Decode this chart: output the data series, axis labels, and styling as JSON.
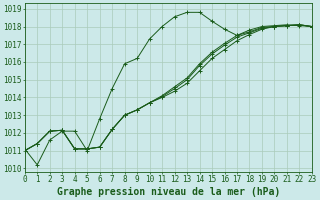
{
  "title": "Graphe pression niveau de la mer (hPa)",
  "x_ticks": [
    0,
    1,
    2,
    3,
    4,
    5,
    6,
    7,
    8,
    9,
    10,
    11,
    12,
    13,
    14,
    15,
    16,
    17,
    18,
    19,
    20,
    21,
    22,
    23
  ],
  "y_ticks": [
    1010,
    1011,
    1012,
    1013,
    1014,
    1015,
    1016,
    1017,
    1018,
    1019
  ],
  "xlim": [
    0,
    23
  ],
  "ylim": [
    1009.8,
    1019.3
  ],
  "background_color": "#cce9e9",
  "grid_color": "#aaccbb",
  "line_color": "#1a5c1a",
  "series": [
    [
      1011.1,
      1010.2,
      1011.6,
      1012.1,
      1012.1,
      1011.0,
      1012.8,
      1014.5,
      1015.9,
      1016.2,
      1017.3,
      1018.0,
      1018.55,
      1018.8,
      1018.8,
      1018.3,
      1017.85,
      1017.5,
      1017.8,
      1018.0,
      1018.05,
      1018.1,
      1018.05,
      1018.0
    ],
    [
      1011.0,
      1011.4,
      1012.1,
      1012.15,
      1011.1,
      1011.1,
      1011.2,
      1012.2,
      1013.0,
      1013.3,
      1013.7,
      1014.0,
      1014.35,
      1014.8,
      1015.5,
      1016.2,
      1016.7,
      1017.2,
      1017.55,
      1017.85,
      1018.0,
      1018.05,
      1018.1,
      1018.0
    ],
    [
      1011.0,
      1011.4,
      1012.1,
      1012.15,
      1011.1,
      1011.1,
      1011.2,
      1012.2,
      1013.0,
      1013.3,
      1013.7,
      1014.05,
      1014.5,
      1015.0,
      1015.8,
      1016.45,
      1016.95,
      1017.4,
      1017.65,
      1017.9,
      1018.0,
      1018.05,
      1018.1,
      1018.0
    ],
    [
      1011.0,
      1011.4,
      1012.1,
      1012.15,
      1011.1,
      1011.1,
      1011.2,
      1012.2,
      1013.0,
      1013.3,
      1013.7,
      1014.1,
      1014.6,
      1015.1,
      1015.9,
      1016.55,
      1017.05,
      1017.5,
      1017.7,
      1017.95,
      1018.0,
      1018.05,
      1018.1,
      1018.0
    ]
  ],
  "title_fontsize": 7,
  "tick_fontsize": 5.5,
  "linewidth": 0.7,
  "markersize": 2.5
}
